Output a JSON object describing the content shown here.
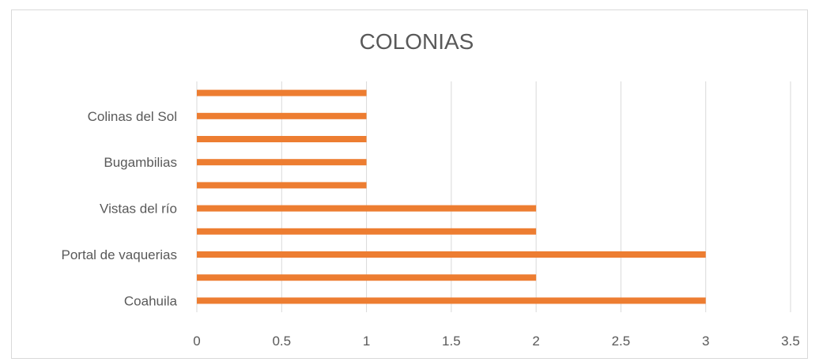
{
  "chart_data": {
    "type": "bar",
    "orientation": "horizontal",
    "title": "COLONIAS",
    "xlabel": "",
    "ylabel": "",
    "xlim": [
      0,
      3.5
    ],
    "x_ticks": [
      "0",
      "0.5",
      "1",
      "1.5",
      "2",
      "2.5",
      "3",
      "3.5"
    ],
    "grid": "vertical",
    "legend": "none",
    "color": "#ed7d31",
    "categories": [
      "Coahuila",
      "",
      "Portal de  vaquerias",
      "",
      "Vistas del río",
      "",
      "Bugambilias",
      "",
      "Colinas del Sol",
      ""
    ],
    "values": [
      3,
      2,
      3,
      2,
      2,
      1,
      1,
      1,
      1,
      1
    ]
  }
}
